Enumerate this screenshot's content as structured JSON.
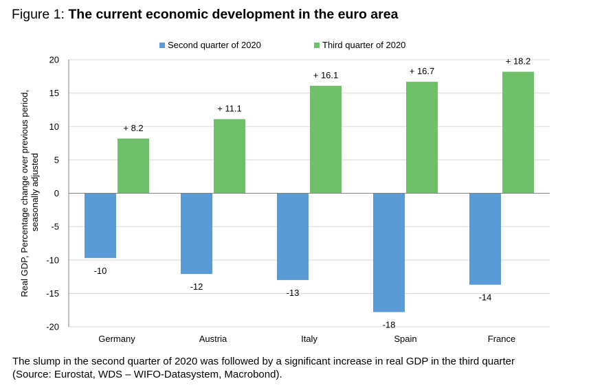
{
  "title": {
    "prefix": "Figure 1: ",
    "main": "The current economic development in the euro area"
  },
  "caption": {
    "line1": "The slump in the second quarter of 2020 was followed by a significant increase in real GDP in the third quarter",
    "line2": "(Source: Eurostat, WDS – WIFO-Datasystem, Macrobond)."
  },
  "colors": {
    "q2": "#5b9bd5",
    "q3": "#70bf6b",
    "axis": "#808080",
    "grid": "#d9d9d9"
  },
  "chart_data": {
    "type": "bar",
    "categories": [
      "Germany",
      "Austria",
      "Italy",
      "Spain",
      "France"
    ],
    "series": [
      {
        "name": "Second quarter of 2020",
        "values": [
          -9.7,
          -12.1,
          -13.0,
          -17.8,
          -13.7
        ],
        "labels": [
          "-10",
          "-12",
          "-13",
          "-18",
          "-14"
        ]
      },
      {
        "name": "Third quarter of 2020",
        "values": [
          8.2,
          11.1,
          16.1,
          16.7,
          18.2
        ],
        "labels": [
          "+ 8.2",
          "+ 11.1",
          "+ 16.1",
          "+ 16.7",
          "+ 18.2"
        ]
      }
    ],
    "ylabel": "Real GDP, Percentage change over previous period, seasonally adjusted",
    "ylabel_lines": [
      "Real GDP, Percentage change over previous period,",
      "seasonally adjusted"
    ],
    "yticks": [
      20,
      15,
      10,
      5,
      0,
      -5,
      -10,
      -15,
      -20
    ],
    "ylim": [
      -20,
      20
    ],
    "grid": true,
    "legend": "top-center"
  }
}
